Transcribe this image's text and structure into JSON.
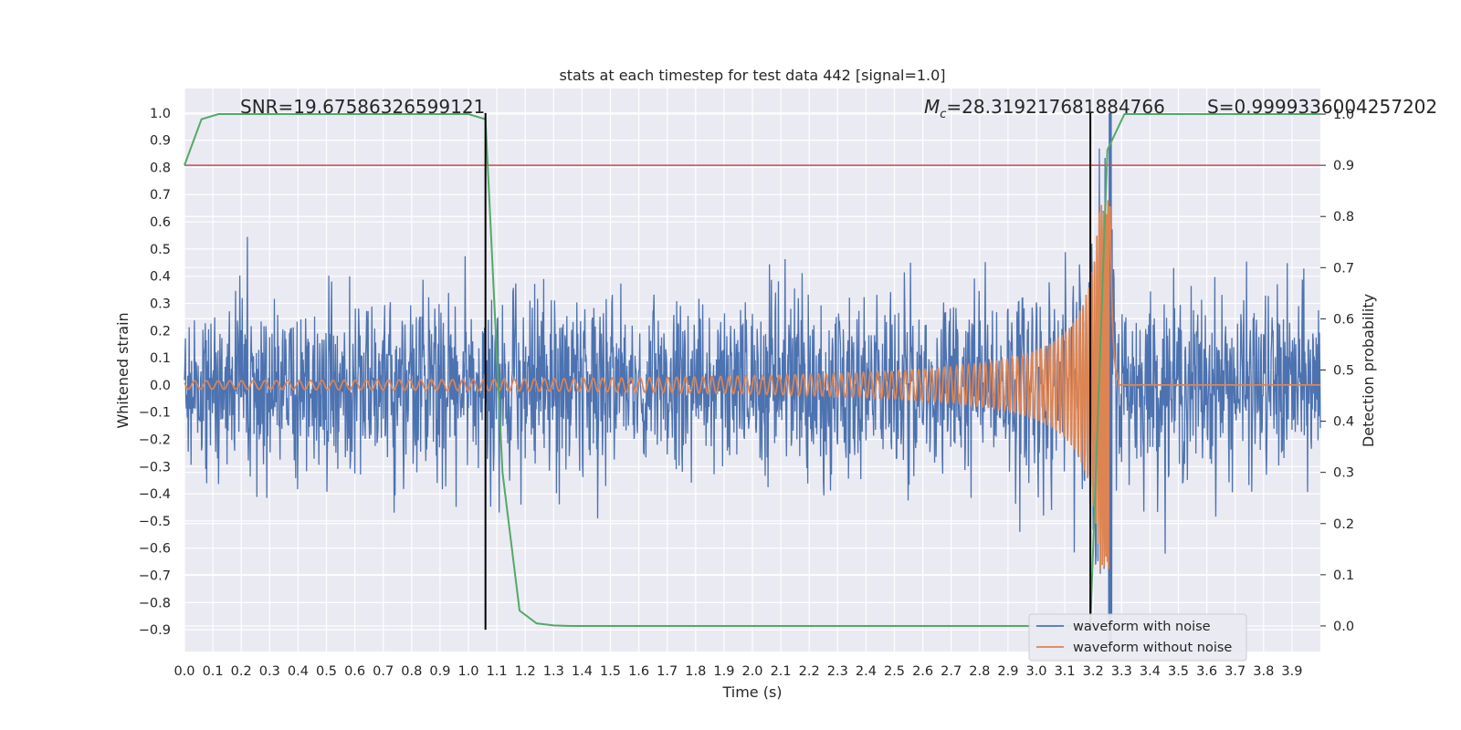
{
  "chart_data": {
    "type": "line",
    "title": "stats at each timestep for test data 442 [signal=1.0]",
    "xlabel": "Time (s)",
    "ylabel": "Whitened strain",
    "y2label": "Detection probability",
    "xlim": [
      0.0,
      4.0
    ],
    "ylim": [
      -0.98,
      1.09
    ],
    "y2lim": [
      -0.05,
      1.05
    ],
    "x_ticks": [
      "0.0",
      "0.1",
      "0.2",
      "0.3",
      "0.4",
      "0.5",
      "0.6",
      "0.7",
      "0.8",
      "0.9",
      "1.0",
      "1.1",
      "1.2",
      "1.3",
      "1.4",
      "1.5",
      "1.6",
      "1.7",
      "1.8",
      "1.9",
      "2.0",
      "2.1",
      "2.2",
      "2.3",
      "2.4",
      "2.5",
      "2.6",
      "2.7",
      "2.8",
      "2.9",
      "3.0",
      "3.1",
      "3.2",
      "3.3",
      "3.4",
      "3.5",
      "3.6",
      "3.7",
      "3.8",
      "3.9"
    ],
    "y_ticks": [
      "1.0",
      "0.9",
      "0.8",
      "0.7",
      "0.6",
      "0.5",
      "0.4",
      "0.3",
      "0.2",
      "0.1",
      "0.0",
      "−0.1",
      "−0.2",
      "−0.3",
      "−0.4",
      "−0.5",
      "−0.6",
      "−0.7",
      "−0.8",
      "−0.9"
    ],
    "y2_ticks": [
      "1.0",
      "0.9",
      "0.8",
      "0.7",
      "0.6",
      "0.5",
      "0.4",
      "0.3",
      "0.2",
      "0.1",
      "0.0"
    ],
    "grid": true,
    "legend_position": "lower-right",
    "annotations": {
      "snr": "SNR=19.67586326599121",
      "mc_symbol": "M",
      "mc_sub": "c",
      "mc_value": "=28.319217681884766",
      "s": "S=0.9999336004257202"
    },
    "series": [
      {
        "name": "waveform with noise",
        "color": "#4c72b0",
        "amplitude_typical": 0.22,
        "x_range": [
          0.0,
          4.0
        ],
        "min": -0.95,
        "max": 1.0
      },
      {
        "name": "waveform without noise",
        "color": "#dd8452",
        "x_range": [
          0.0,
          4.0
        ],
        "merger_time": 3.26,
        "amplitude_start": 0.015,
        "amplitude_peak": 0.68
      },
      {
        "color": "#55a868",
        "axis": "right",
        "x": [
          0.0,
          0.06,
          0.12,
          0.18,
          0.24,
          0.3,
          0.36,
          0.42,
          0.48,
          0.54,
          0.6,
          0.66,
          0.72,
          0.78,
          0.84,
          0.9,
          0.96,
          1.0,
          1.06,
          1.12,
          1.18,
          1.24,
          1.3,
          1.36,
          1.5,
          2.0,
          2.5,
          3.0,
          3.19,
          3.25,
          3.31,
          3.4,
          3.6,
          3.8,
          4.0
        ],
        "y": [
          0.9,
          0.99,
          1.0,
          1.0,
          1.0,
          1.0,
          1.0,
          1.0,
          1.0,
          1.0,
          1.0,
          1.0,
          1.0,
          1.0,
          1.0,
          1.0,
          1.0,
          1.0,
          0.99,
          0.3,
          0.03,
          0.005,
          0.001,
          0.0,
          0.0,
          0.0,
          0.0,
          0.0,
          0.0,
          0.93,
          1.0,
          1.0,
          1.0,
          1.0,
          1.0
        ]
      }
    ],
    "threshold_line": {
      "axis": "right",
      "y": 0.9,
      "color": "#c44e52"
    },
    "vertical_lines": [
      {
        "x": 1.06,
        "y_from": -0.9,
        "y_to": 1.0,
        "color": "#000000"
      },
      {
        "x": 3.19,
        "y_from": -0.9,
        "y_to": 1.0,
        "color": "#000000"
      }
    ]
  }
}
